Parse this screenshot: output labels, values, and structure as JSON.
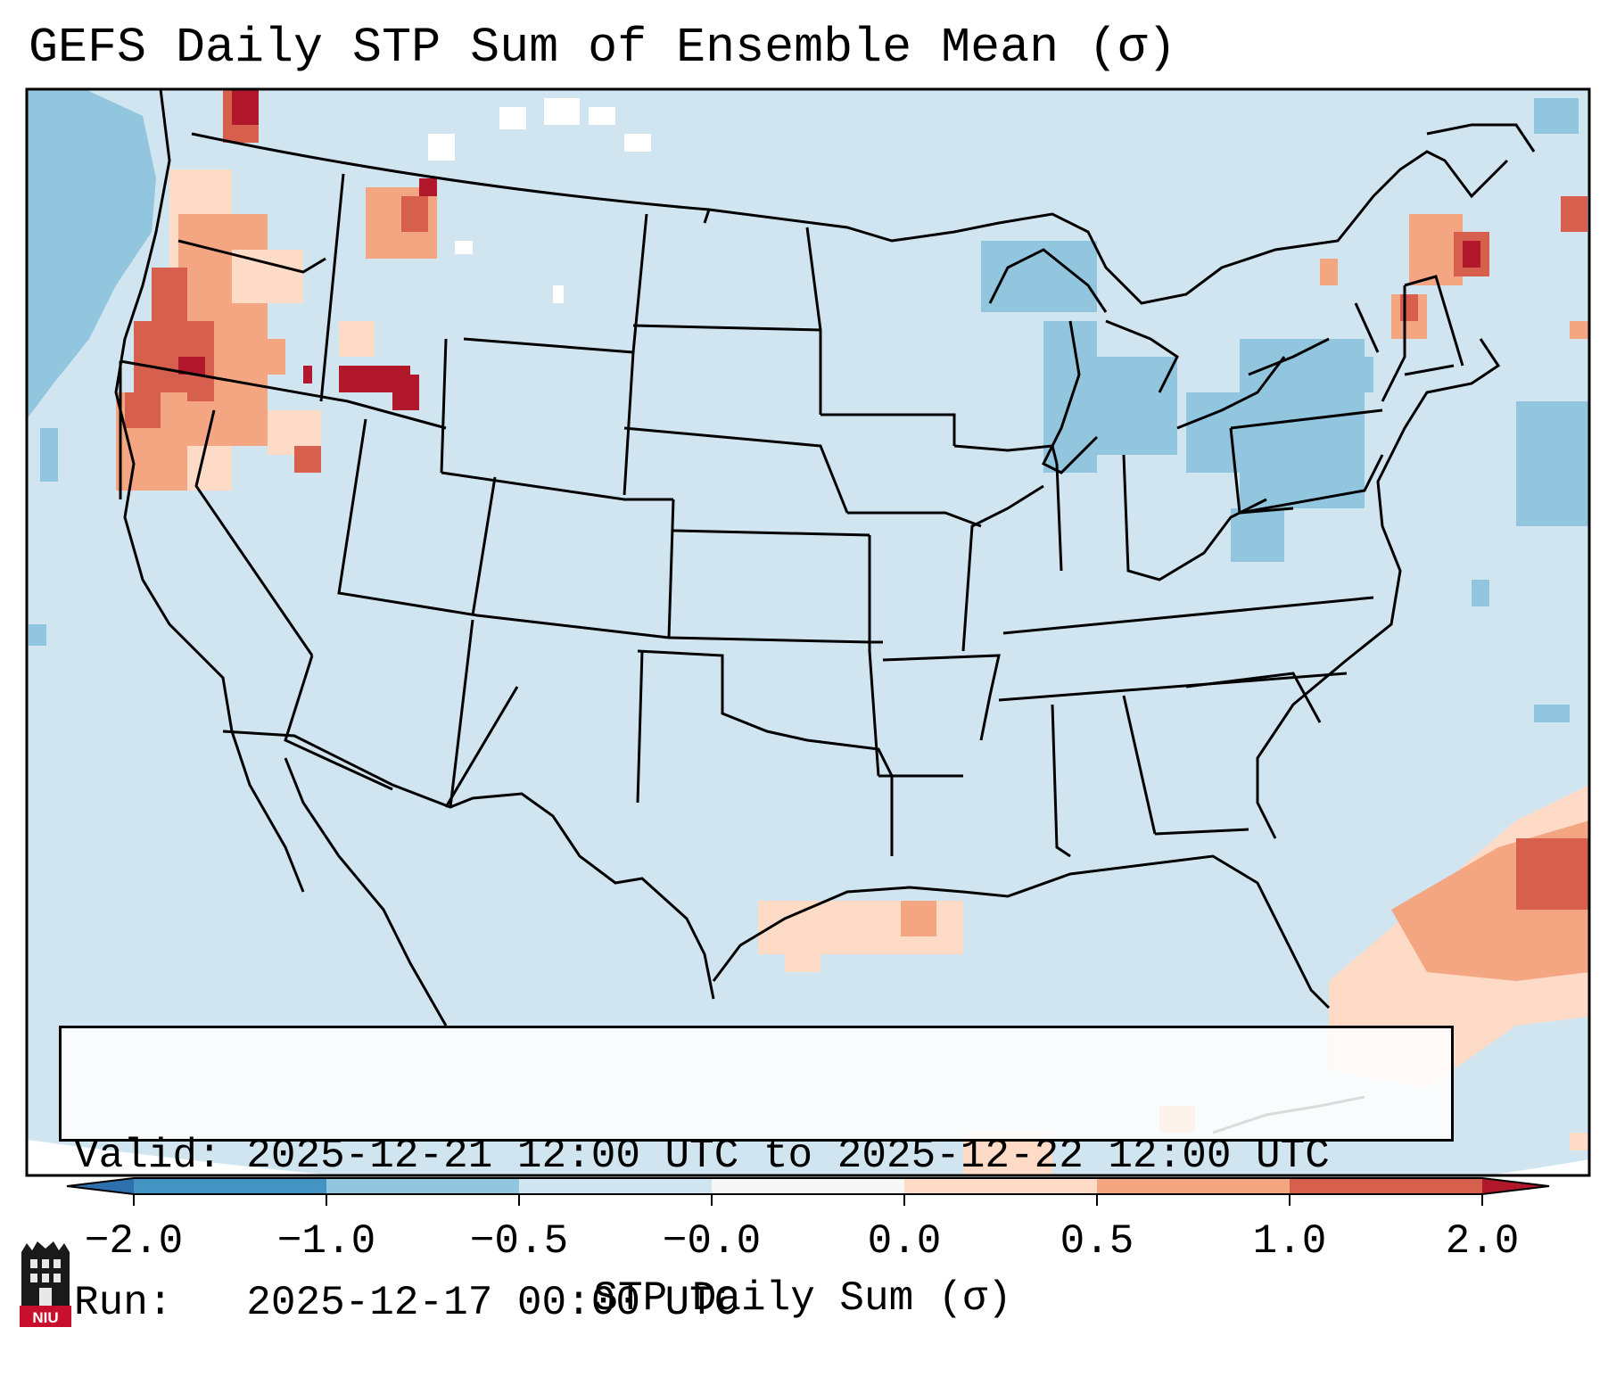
{
  "title": "GEFS Daily STP Sum of Ensemble Mean (σ)",
  "valid_label": "Valid:",
  "valid_text": "2025-12-21 12:00 UTC to 2025-12-22 12:00 UTC",
  "run_label": "Run:",
  "run_text": "2025-12-17 00:00 UTC",
  "colorbar": {
    "label": "STP Daily Sum (σ)",
    "ticks": [
      "−2.0",
      "−1.0",
      "−0.5",
      "−0.0",
      "0.0",
      "0.5",
      "1.0",
      "2.0"
    ],
    "colors": [
      "#2e6fae",
      "#4393c3",
      "#92c5de",
      "#d1e5f0",
      "#f7f7f7",
      "#fddbc7",
      "#f4a582",
      "#d6604d",
      "#b2182b"
    ]
  },
  "logo_text": "NIU"
}
